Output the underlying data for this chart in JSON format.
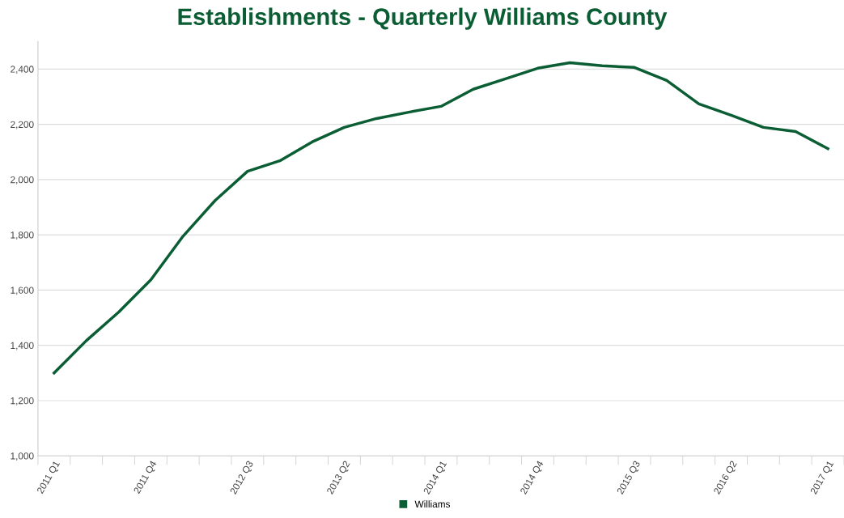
{
  "chart_data": {
    "type": "line",
    "title": "Establishments - Quarterly Williams County",
    "categories": [
      "2011 Q1",
      null,
      null,
      "2011 Q4",
      null,
      null,
      "2012 Q3",
      null,
      null,
      "2013 Q2",
      null,
      null,
      "2014 Q1",
      null,
      null,
      "2014 Q4",
      null,
      null,
      "2015 Q3",
      null,
      null,
      "2016 Q2",
      null,
      null,
      "2017 Q1"
    ],
    "series": [
      {
        "name": "Williams",
        "color": "#0b5d34",
        "values": [
          1300,
          1417,
          1520,
          1637,
          1795,
          1925,
          2030,
          2068,
          2136,
          2189,
          2221,
          2244,
          2265,
          2327,
          2365,
          2403,
          2423,
          2412,
          2406,
          2359,
          2274,
          2233,
          2189,
          2174,
          2112
        ]
      }
    ],
    "ylim": [
      1000,
      2500
    ],
    "yticks": [
      {
        "value": 1000,
        "label": "1,000"
      },
      {
        "value": 1200,
        "label": "1,200"
      },
      {
        "value": 1400,
        "label": "1,400"
      },
      {
        "value": 1600,
        "label": "1,600"
      },
      {
        "value": 1800,
        "label": "1,800"
      },
      {
        "value": 2000,
        "label": "2,000"
      },
      {
        "value": 2200,
        "label": "2,200"
      },
      {
        "value": 2400,
        "label": "2,400"
      }
    ],
    "grid": "y",
    "legend": "bottom",
    "marker": "none",
    "line_style": "solid"
  }
}
